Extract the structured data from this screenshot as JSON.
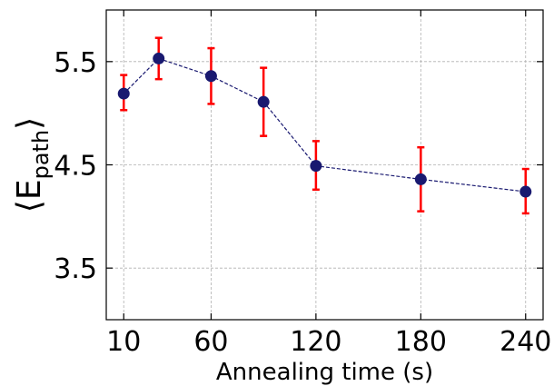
{
  "chart_data": {
    "type": "line",
    "title": "",
    "xlabel": "Annealing time (s)",
    "ylabel": {
      "main": "E",
      "sub": "path",
      "left": "⟨",
      "right": "⟩"
    },
    "xlim": [
      0,
      250
    ],
    "ylim": [
      3.0,
      6.0
    ],
    "xticks": [
      10,
      60,
      120,
      180,
      240
    ],
    "yticks": [
      3.5,
      4.5,
      5.5
    ],
    "grid": true,
    "series": [
      {
        "x": [
          10,
          30,
          60,
          90,
          120,
          180,
          240
        ],
        "y": [
          5.19,
          5.53,
          5.36,
          5.11,
          4.49,
          4.36,
          4.24
        ],
        "err_low": [
          5.03,
          5.33,
          5.09,
          4.78,
          4.26,
          4.05,
          4.03
        ],
        "err_high": [
          5.37,
          5.73,
          5.63,
          5.44,
          4.73,
          4.67,
          4.46
        ],
        "marker_color": "#191970",
        "line_color": "#191970",
        "error_color": "#ff0000"
      }
    ]
  }
}
